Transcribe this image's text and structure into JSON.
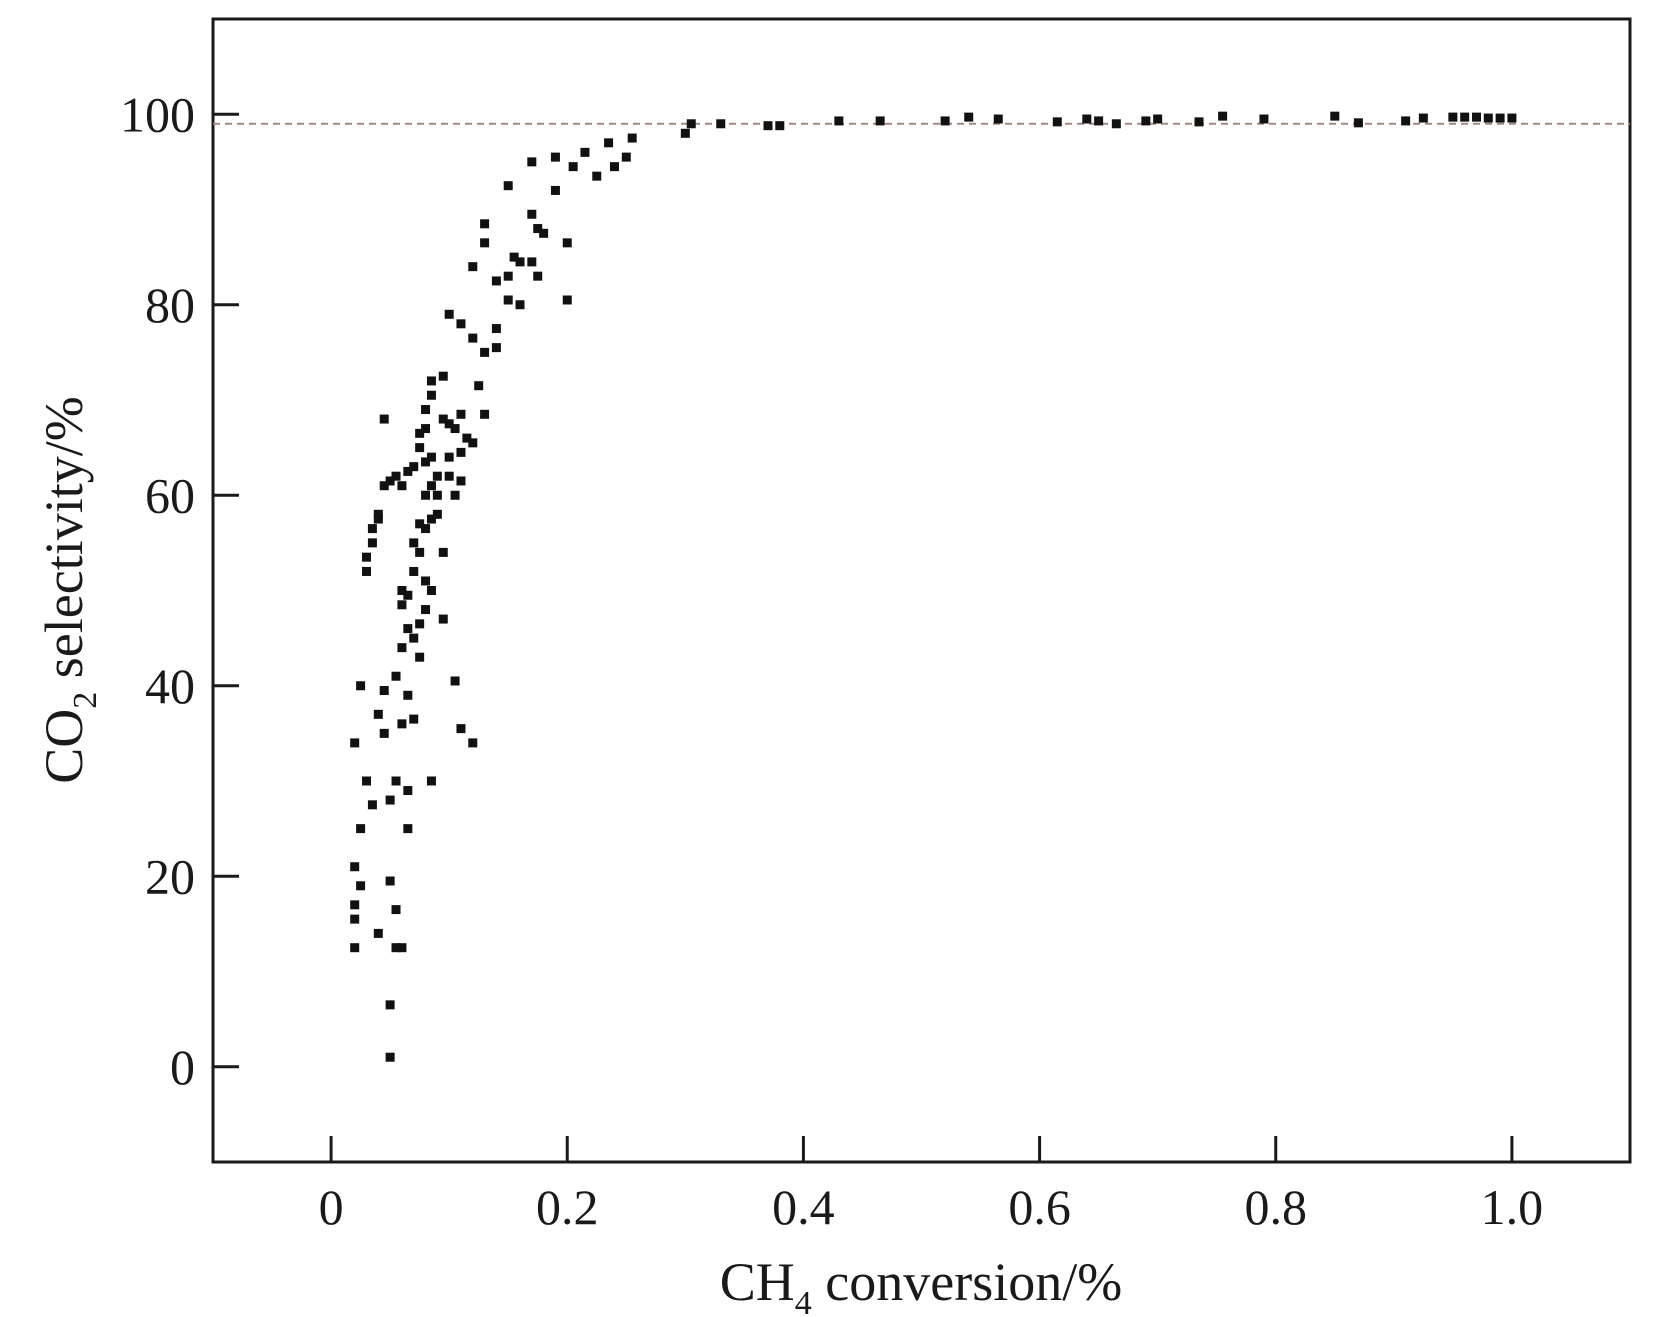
{
  "chart_data": {
    "type": "scatter",
    "xlabel": {
      "main": "CH",
      "sub": "4",
      "rest": " conversion/%"
    },
    "ylabel": {
      "main": "CO",
      "sub": "2",
      "rest": " selectivity/%"
    },
    "xlim": [
      -0.1,
      1.1
    ],
    "ylim": [
      -10,
      110
    ],
    "xticks": [
      0,
      0.2,
      0.4,
      0.6,
      0.8,
      1.0
    ],
    "xtick_labels": [
      "0",
      "0.2",
      "0.4",
      "0.6",
      "0.8",
      "1.0"
    ],
    "yticks": [
      0,
      20,
      40,
      60,
      80,
      100
    ],
    "ytick_labels": [
      "0",
      "20",
      "40",
      "60",
      "80",
      "100"
    ],
    "reference_line": {
      "y": 99,
      "style": "dashed",
      "color": "#a08a80"
    },
    "grid": false,
    "marker_color": "#111111",
    "points": [
      [
        0.02,
        12.5
      ],
      [
        0.02,
        15.5
      ],
      [
        0.02,
        17
      ],
      [
        0.02,
        21
      ],
      [
        0.025,
        19
      ],
      [
        0.025,
        25
      ],
      [
        0.02,
        34
      ],
      [
        0.025,
        40
      ],
      [
        0.03,
        30
      ],
      [
        0.035,
        27.5
      ],
      [
        0.04,
        14
      ],
      [
        0.045,
        35
      ],
      [
        0.04,
        37
      ],
      [
        0.045,
        39.5
      ],
      [
        0.05,
        1
      ],
      [
        0.05,
        6.5
      ],
      [
        0.055,
        12.5
      ],
      [
        0.06,
        12.5
      ],
      [
        0.055,
        16.5
      ],
      [
        0.05,
        19.5
      ],
      [
        0.05,
        28
      ],
      [
        0.055,
        30
      ],
      [
        0.065,
        29
      ],
      [
        0.065,
        25
      ],
      [
        0.06,
        36
      ],
      [
        0.07,
        36.5
      ],
      [
        0.065,
        39
      ],
      [
        0.055,
        41
      ],
      [
        0.06,
        44
      ],
      [
        0.065,
        46
      ],
      [
        0.06,
        48.5
      ],
      [
        0.06,
        50
      ],
      [
        0.065,
        49.5
      ],
      [
        0.07,
        52
      ],
      [
        0.03,
        52
      ],
      [
        0.03,
        53.5
      ],
      [
        0.035,
        55
      ],
      [
        0.035,
        56.5
      ],
      [
        0.04,
        57.5
      ],
      [
        0.04,
        58
      ],
      [
        0.045,
        61
      ],
      [
        0.05,
        61.5
      ],
      [
        0.055,
        62
      ],
      [
        0.06,
        61
      ],
      [
        0.065,
        62.5
      ],
      [
        0.07,
        63
      ],
      [
        0.07,
        55
      ],
      [
        0.075,
        54
      ],
      [
        0.075,
        57
      ],
      [
        0.08,
        56.5
      ],
      [
        0.085,
        57.5
      ],
      [
        0.075,
        43
      ],
      [
        0.07,
        45
      ],
      [
        0.075,
        46.5
      ],
      [
        0.08,
        48
      ],
      [
        0.08,
        51
      ],
      [
        0.085,
        50
      ],
      [
        0.08,
        60
      ],
      [
        0.085,
        61
      ],
      [
        0.08,
        63.5
      ],
      [
        0.085,
        64
      ],
      [
        0.09,
        62
      ],
      [
        0.09,
        60
      ],
      [
        0.09,
        58
      ],
      [
        0.075,
        65
      ],
      [
        0.075,
        66.5
      ],
      [
        0.08,
        67
      ],
      [
        0.08,
        69
      ],
      [
        0.085,
        70.5
      ],
      [
        0.085,
        72
      ],
      [
        0.095,
        72.5
      ],
      [
        0.095,
        68
      ],
      [
        0.1,
        67.5
      ],
      [
        0.1,
        64
      ],
      [
        0.1,
        62
      ],
      [
        0.105,
        60
      ],
      [
        0.11,
        61.5
      ],
      [
        0.11,
        64.5
      ],
      [
        0.105,
        67
      ],
      [
        0.11,
        68.5
      ],
      [
        0.115,
        66
      ],
      [
        0.12,
        65.5
      ],
      [
        0.125,
        71.5
      ],
      [
        0.13,
        68.5
      ],
      [
        0.095,
        47
      ],
      [
        0.095,
        54
      ],
      [
        0.085,
        30
      ],
      [
        0.105,
        40.5
      ],
      [
        0.11,
        35.5
      ],
      [
        0.12,
        34
      ],
      [
        0.045,
        68
      ],
      [
        0.1,
        79
      ],
      [
        0.11,
        78
      ],
      [
        0.12,
        76.5
      ],
      [
        0.13,
        75
      ],
      [
        0.14,
        77.5
      ],
      [
        0.14,
        75.5
      ],
      [
        0.12,
        84
      ],
      [
        0.13,
        86.5
      ],
      [
        0.13,
        88.5
      ],
      [
        0.14,
        82.5
      ],
      [
        0.15,
        83
      ],
      [
        0.155,
        85
      ],
      [
        0.16,
        84.5
      ],
      [
        0.15,
        80.5
      ],
      [
        0.16,
        80
      ],
      [
        0.17,
        84.5
      ],
      [
        0.175,
        83
      ],
      [
        0.17,
        89.5
      ],
      [
        0.175,
        88
      ],
      [
        0.18,
        87.5
      ],
      [
        0.15,
        92.5
      ],
      [
        0.17,
        95
      ],
      [
        0.19,
        92
      ],
      [
        0.19,
        95.5
      ],
      [
        0.2,
        86.5
      ],
      [
        0.2,
        80.5
      ],
      [
        0.205,
        94.5
      ],
      [
        0.215,
        96
      ],
      [
        0.225,
        93.5
      ],
      [
        0.235,
        97
      ],
      [
        0.24,
        94.5
      ],
      [
        0.25,
        95.5
      ],
      [
        0.255,
        97.5
      ],
      [
        0.3,
        98
      ],
      [
        0.305,
        99
      ],
      [
        0.33,
        99
      ],
      [
        0.37,
        98.8
      ],
      [
        0.38,
        98.8
      ],
      [
        0.43,
        99.3
      ],
      [
        0.465,
        99.3
      ],
      [
        0.52,
        99.3
      ],
      [
        0.54,
        99.7
      ],
      [
        0.565,
        99.5
      ],
      [
        0.615,
        99.2
      ],
      [
        0.64,
        99.5
      ],
      [
        0.65,
        99.3
      ],
      [
        0.665,
        99.0
      ],
      [
        0.69,
        99.3
      ],
      [
        0.7,
        99.5
      ],
      [
        0.735,
        99.2
      ],
      [
        0.755,
        99.8
      ],
      [
        0.79,
        99.5
      ],
      [
        0.85,
        99.8
      ],
      [
        0.87,
        99.1
      ],
      [
        0.91,
        99.3
      ],
      [
        0.925,
        99.6
      ],
      [
        0.95,
        99.7
      ],
      [
        0.96,
        99.7
      ],
      [
        0.97,
        99.7
      ],
      [
        0.98,
        99.6
      ],
      [
        0.99,
        99.6
      ],
      [
        1.0,
        99.6
      ]
    ]
  }
}
